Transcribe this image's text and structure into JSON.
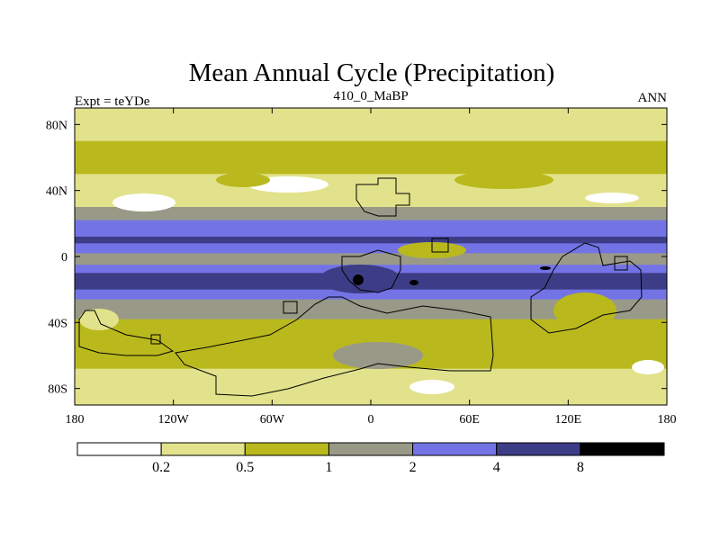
{
  "chart_data": {
    "type": "heatmap",
    "title": "Mean Annual Cycle (Precipitation)",
    "left_label": "Expt = teYDe",
    "center_label": "410_0_MaBP",
    "right_label": "ANN",
    "x_ticks": [
      "180",
      "120W",
      "60W",
      "0",
      "60E",
      "120E",
      "180"
    ],
    "x_tick_values": [
      -180,
      -120,
      -60,
      0,
      60,
      120,
      180
    ],
    "y_ticks": [
      "80N",
      "40N",
      "0",
      "40S",
      "80S"
    ],
    "y_tick_values": [
      80,
      40,
      0,
      -40,
      -80
    ],
    "xlim": [
      -180,
      180
    ],
    "ylim": [
      -90,
      90
    ],
    "colorbar": {
      "levels": [
        "0.2",
        "0.5",
        "1",
        "2",
        "4",
        "8"
      ],
      "colors": [
        "#ffffff",
        "#e2e28c",
        "#b9b91e",
        "#999988",
        "#7373e6",
        "#3d3d87",
        "#000000"
      ]
    },
    "zonal_bands": [
      {
        "lat_range": [
          82,
          90
        ],
        "level": 1
      },
      {
        "lat_range": [
          70,
          82
        ],
        "level": 1
      },
      {
        "lat_range": [
          50,
          70
        ],
        "level": 2
      },
      {
        "lat_range": [
          40,
          50
        ],
        "level": 1
      },
      {
        "lat_range": [
          30,
          40
        ],
        "level": 1
      },
      {
        "lat_range": [
          22,
          30
        ],
        "level": 3
      },
      {
        "lat_range": [
          12,
          22
        ],
        "level": 4
      },
      {
        "lat_range": [
          8,
          12
        ],
        "level": 5
      },
      {
        "lat_range": [
          2,
          8
        ],
        "level": 4
      },
      {
        "lat_range": [
          -5,
          2
        ],
        "level": 3
      },
      {
        "lat_range": [
          -10,
          -5
        ],
        "level": 4
      },
      {
        "lat_range": [
          -20,
          -10
        ],
        "level": 5
      },
      {
        "lat_range": [
          -26,
          -20
        ],
        "level": 4
      },
      {
        "lat_range": [
          -38,
          -26
        ],
        "level": 3
      },
      {
        "lat_range": [
          -55,
          -38
        ],
        "level": 2
      },
      {
        "lat_range": [
          -68,
          -55
        ],
        "level": 2
      },
      {
        "lat_range": [
          -80,
          -68
        ],
        "level": 1
      },
      {
        "lat_range": [
          -90,
          -80
        ],
        "level": 1
      }
    ]
  }
}
